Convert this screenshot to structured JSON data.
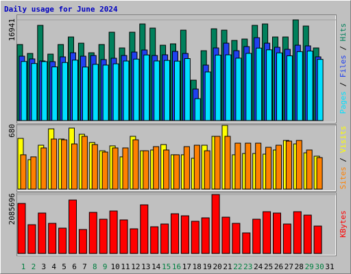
{
  "title": "Daily usage for June 2024",
  "legend_separator": "/",
  "days": [
    "1",
    "2",
    "3",
    "4",
    "5",
    "6",
    "7",
    "8",
    "9",
    "10",
    "11",
    "12",
    "13",
    "14",
    "15",
    "16",
    "17",
    "18",
    "19",
    "20",
    "21",
    "22",
    "23",
    "24",
    "25",
    "26",
    "27",
    "28",
    "29",
    "30",
    "31"
  ],
  "day_colors": [
    "#008040",
    "#008040",
    "#000000",
    "#000000",
    "#000000",
    "#000000",
    "#000000",
    "#008040",
    "#008040",
    "#000000",
    "#000000",
    "#000000",
    "#000000",
    "#000000",
    "#008040",
    "#008040",
    "#000000",
    "#000000",
    "#000000",
    "#000000",
    "#000000",
    "#008040",
    "#008040",
    "#000000",
    "#000000",
    "#000000",
    "#000000",
    "#000000",
    "#008040",
    "#008040",
    "#000000"
  ],
  "chart_data": [
    {
      "type": "bar",
      "ylim": [
        0,
        16941
      ],
      "yticks": [
        16941
      ],
      "series": [
        {
          "name": "Hits",
          "color": "#00805c",
          "values": [
            12793,
            11294,
            16020,
            11179,
            12793,
            14060,
            13023,
            11410,
            12793,
            14867,
            12216,
            14867,
            16250,
            15559,
            12677,
            12908,
            15213,
            6800,
            11755,
            15443,
            15213,
            13484,
            13715,
            16020,
            16250,
            14060,
            14060,
            16941,
            15904,
            12216,
            null
          ]
        },
        {
          "name": "Files",
          "color": "#2040f0",
          "values": [
            10834,
            10373,
            10027,
            9912,
            10718,
            11410,
            10834,
            10949,
            10257,
            10488,
            10949,
            11525,
            11871,
            10949,
            11064,
            11640,
            11295,
            5302,
            9335,
            12217,
            13023,
            11756,
            12447,
            13945,
            13023,
            12332,
            11986,
            12678,
            12562,
            10718,
            null
          ]
        },
        {
          "name": "Pages",
          "color": "#00e0ff",
          "values": [
            9940,
            9600,
            9920,
            9030,
            9770,
            10170,
            9010,
            9460,
            9340,
            9550,
            10020,
            10340,
            11040,
            10030,
            10120,
            10000,
            10430,
            3680,
            8180,
            11020,
            11060,
            10500,
            11310,
            12190,
            11900,
            11390,
            10900,
            11600,
            11700,
            10300,
            null
          ]
        }
      ]
    },
    {
      "type": "bar",
      "ylim": [
        0,
        680
      ],
      "yticks": [
        680
      ],
      "series": [
        {
          "name": "Visits",
          "color": "#ffff00",
          "values": [
            541,
            314,
            468,
            643,
            534,
            651,
            585,
            497,
            409,
            461,
            344,
            563,
            409,
            417,
            475,
            366,
            366,
            329,
            468,
            563,
            680,
            366,
            380,
            380,
            373,
            417,
            519,
            482,
            387,
            351,
            null
          ]
        },
        {
          "name": "Sites",
          "color": "#ff8000",
          "values": [
            366,
            344,
            439,
            534,
            526,
            482,
            563,
            475,
            395,
            439,
            439,
            526,
            409,
            453,
            417,
            366,
            453,
            468,
            409,
            563,
            563,
            490,
            490,
            490,
            446,
            468,
            512,
            519,
            417,
            336,
            null
          ]
        }
      ]
    },
    {
      "type": "bar",
      "ylim": [
        0,
        2085696
      ],
      "yticks": [
        2085696
      ],
      "series": [
        {
          "name": "KBytes",
          "color": "#ff0000",
          "values": [
            1770396,
            1018584,
            1430868,
            1067088,
            897324,
            1891656,
            848820,
            1455120,
            1212600,
            1503624,
            1188348,
            873072,
            1721892,
            945828,
            1042836,
            1406616,
            1333860,
            1139844,
            1261104,
            2085696,
            1285356,
            1067088,
            727560,
            1212600,
            1479372,
            1430868,
            1042836,
            1479372,
            1358112,
            970080,
            null
          ]
        }
      ]
    }
  ]
}
